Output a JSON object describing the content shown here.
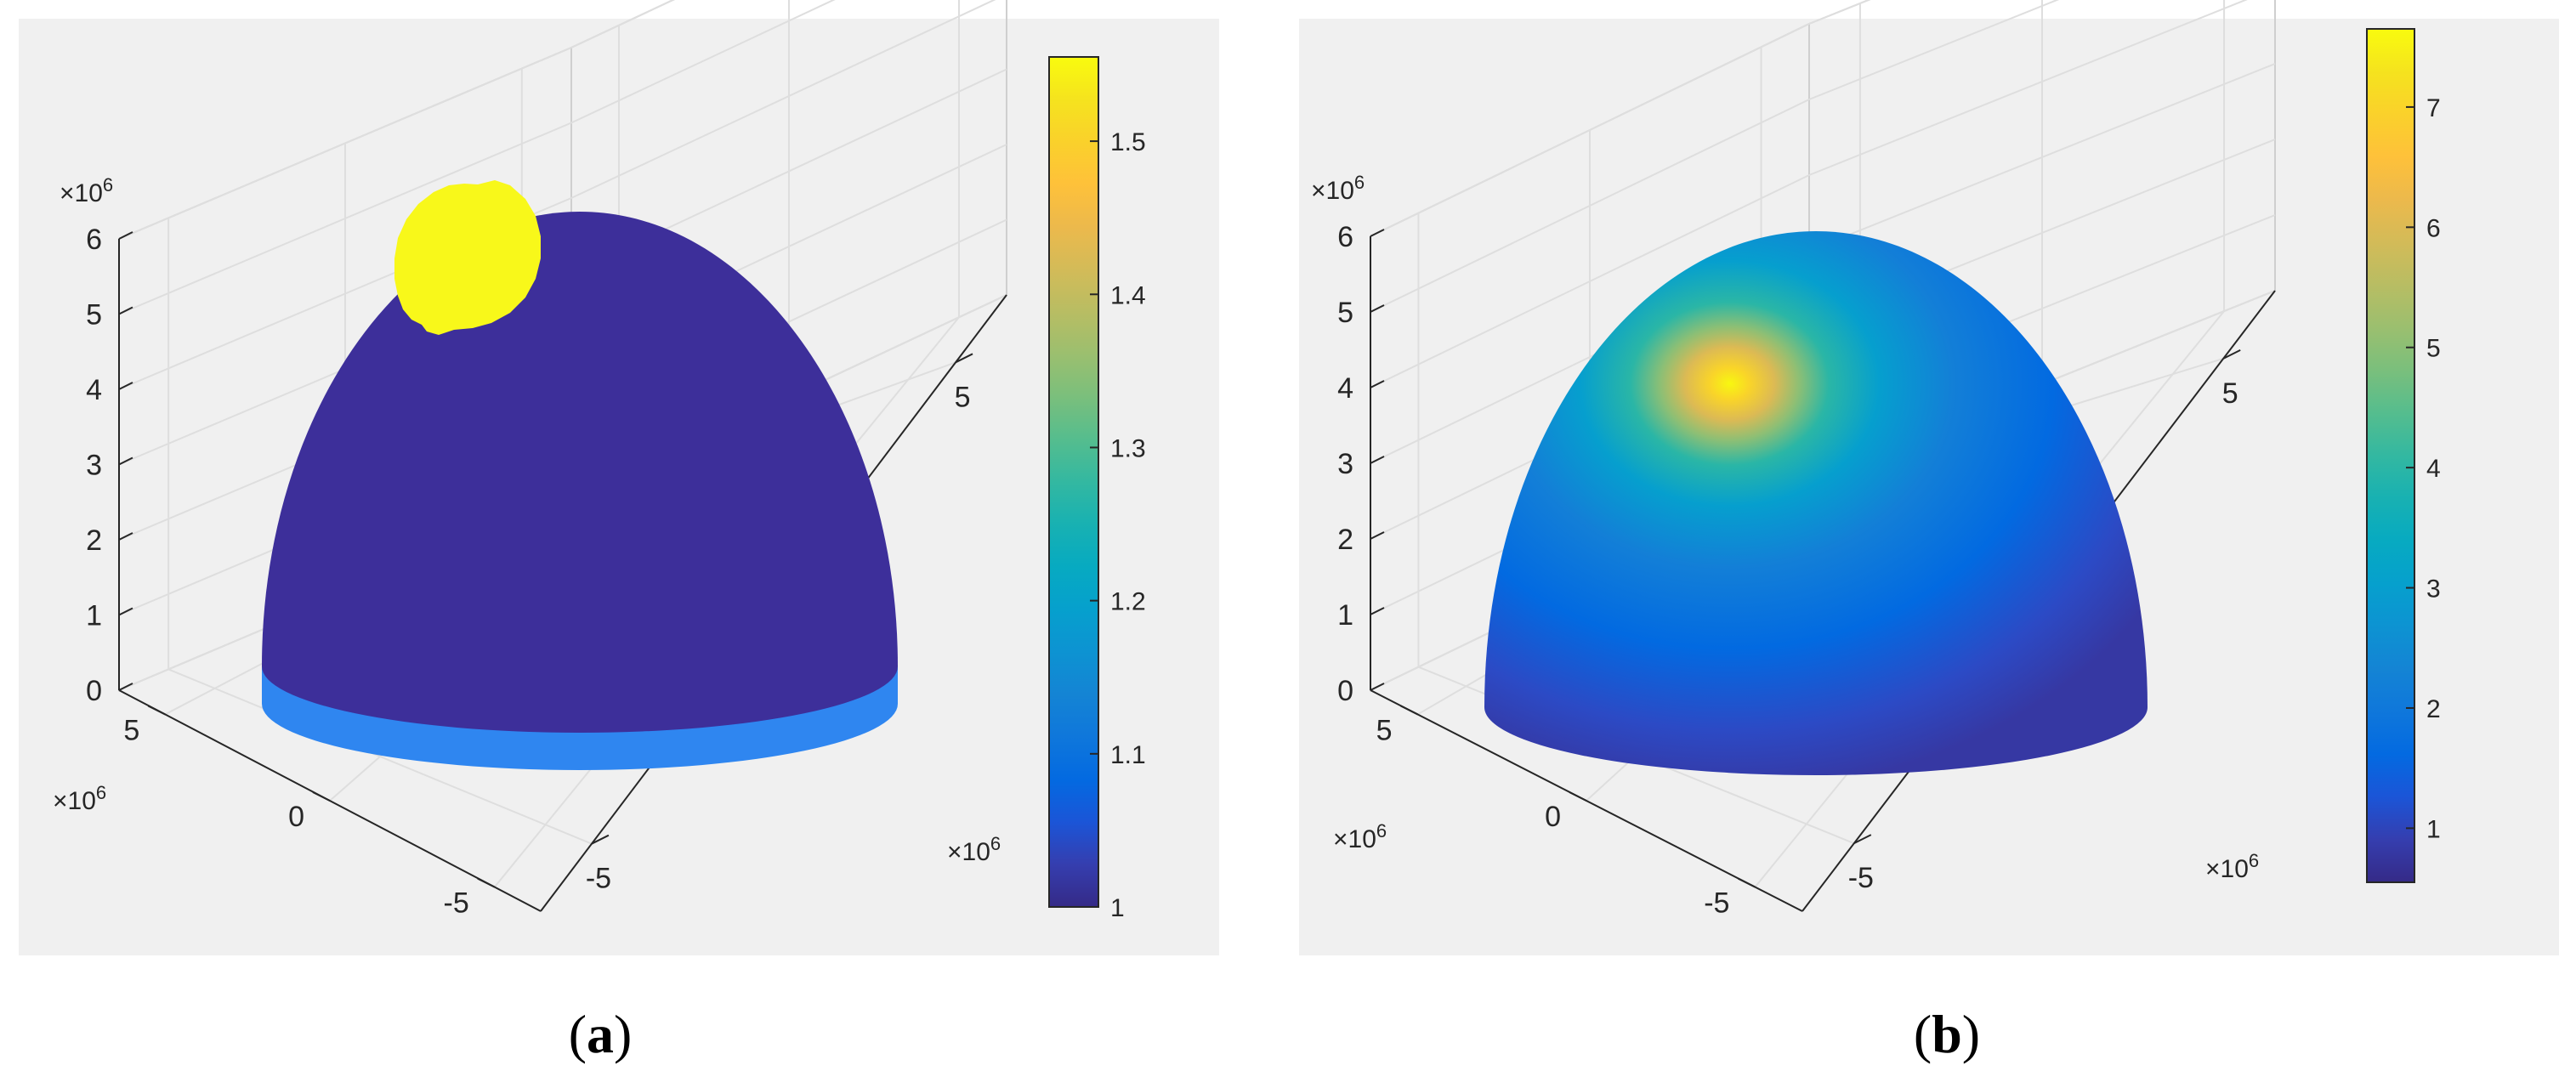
{
  "chart_data": [
    {
      "type": "surface3d",
      "caption": {
        "open": "(",
        "letter": "a",
        "close": ")"
      },
      "x_ticks": [
        "-5",
        "0",
        "5"
      ],
      "y_ticks": [
        "-5",
        "0",
        "5"
      ],
      "z_ticks": [
        "0",
        "1",
        "2",
        "3",
        "4",
        "5",
        "6"
      ],
      "x_exponent": "×10",
      "y_exponent": "×10",
      "z_exponent": "×10",
      "exponent_power": "6",
      "zlim": [
        0,
        6
      ],
      "xlim": [
        -6.4,
        6.4
      ],
      "ylim": [
        -6.4,
        6.4
      ],
      "colorbar": {
        "ticks": [
          "1",
          "1.1",
          "1.2",
          "1.3",
          "1.4",
          "1.5"
        ],
        "range": [
          1.0,
          1.555
        ]
      },
      "regions": [
        {
          "name": "dome",
          "value": 1.0,
          "color": "#3d2f9a"
        },
        {
          "name": "patch",
          "value": 1.555,
          "color": "#f8f81a"
        },
        {
          "name": "base ring",
          "value": 1.12,
          "color": "#2f86f0"
        }
      ]
    },
    {
      "type": "surface3d",
      "caption": {
        "open": "(",
        "letter": "b",
        "close": ")"
      },
      "x_ticks": [
        "-5",
        "0",
        "5"
      ],
      "y_ticks": [
        "-5",
        "0",
        "5"
      ],
      "z_ticks": [
        "0",
        "1",
        "2",
        "3",
        "4",
        "5",
        "6"
      ],
      "x_exponent": "×10",
      "y_exponent": "×10",
      "z_exponent": "×10",
      "exponent_power": "6",
      "zlim": [
        0,
        6
      ],
      "xlim": [
        -6.4,
        6.4
      ],
      "ylim": [
        -6.4,
        6.4
      ],
      "colorbar": {
        "ticks": [
          "1",
          "2",
          "3",
          "4",
          "5",
          "6",
          "7"
        ],
        "range": [
          0.55,
          7.65
        ]
      },
      "peak_value": 7.6,
      "base_value": 1.0
    }
  ]
}
